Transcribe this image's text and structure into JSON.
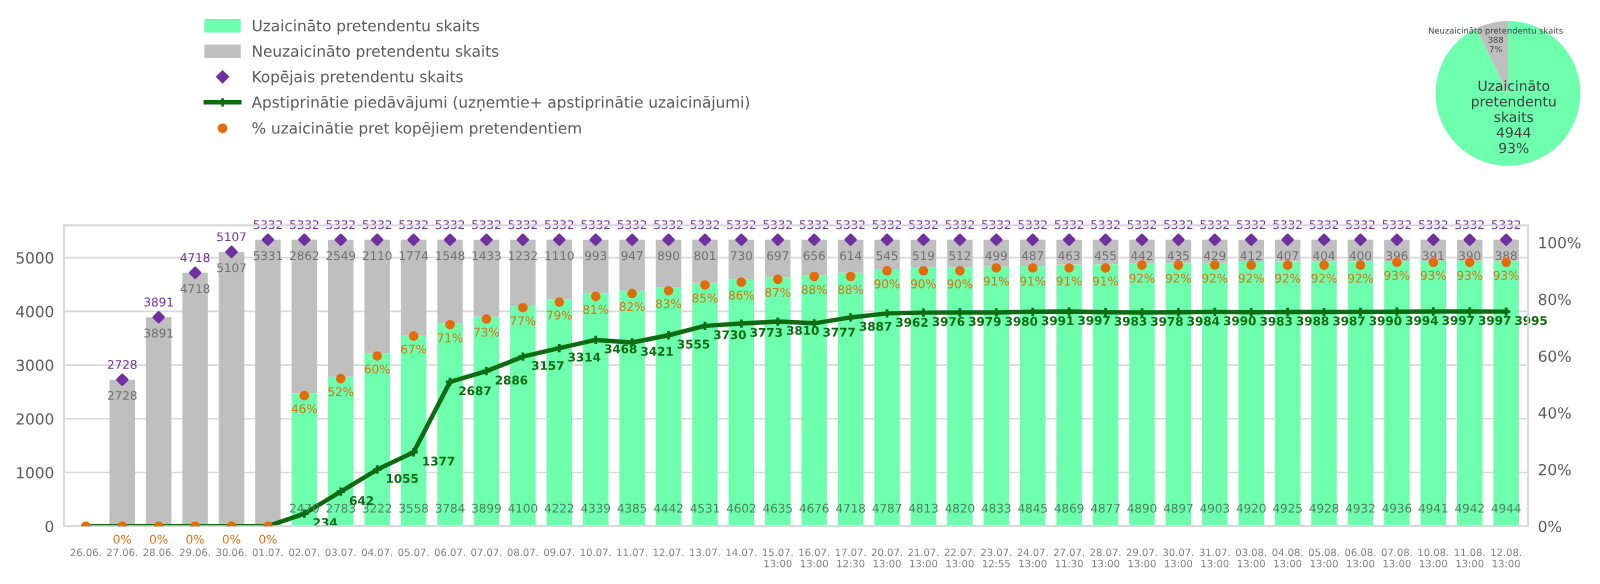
{
  "chart_data": [
    {
      "type": "bar",
      "stacked": true,
      "legend": "top",
      "grid": "y",
      "categories": [
        "26.06.",
        "27.06.",
        "28.06.",
        "29.06.",
        "30.06.",
        "01.07.",
        "02.07.",
        "03.07.",
        "04.07.",
        "05.07.",
        "06.07.",
        "07.07.",
        "08.07.",
        "09.07.",
        "10.07.",
        "11.07.",
        "12.07.",
        "13.07.",
        "14.07.",
        "15.07.\n13:00",
        "16.07.\n13:00",
        "17.07.\n12:30",
        "20.07.\n13:00",
        "21.07.\n13:00",
        "22.07.\n13:00",
        "23.07.\n12:55",
        "24.07.\n13:00",
        "27.07.\n11:30",
        "28.07.\n13:00",
        "29.07.\n13:00",
        "30.07.\n13:00",
        "31.07.\n13:00",
        "03.08.\n13:00",
        "04.08.\n13:00",
        "05.08.\n13:00",
        "06.08.\n13:00",
        "07.08.\n13:00",
        "10.08.\n13:00",
        "11.08.\n13:00",
        "12.08.\n13:00"
      ],
      "ylim": [
        0,
        5600
      ],
      "yticks": [
        0,
        1000,
        2000,
        3000,
        4000,
        5000
      ],
      "y2lim": [
        0,
        106
      ],
      "y2ticks": [
        {
          "value": 0,
          "label": "0%"
        },
        {
          "value": 20,
          "label": "20%"
        },
        {
          "value": 40,
          "label": "40%"
        },
        {
          "value": 60,
          "label": "60%"
        },
        {
          "value": 80,
          "label": "80%"
        },
        {
          "value": 100,
          "label": "100%"
        }
      ],
      "series": [
        {
          "type": "bar",
          "name": "Uzaicināto pretendentu skaits",
          "color": "#6dffad",
          "values": [
            0,
            0,
            0,
            0,
            0,
            0,
            2470,
            2783,
            3222,
            3558,
            3784,
            3899,
            4100,
            4222,
            4339,
            4385,
            4442,
            4531,
            4602,
            4635,
            4676,
            4718,
            4787,
            4813,
            4820,
            4833,
            4845,
            4869,
            4877,
            4890,
            4897,
            4903,
            4920,
            4925,
            4928,
            4932,
            4936,
            4941,
            4942,
            4944
          ],
          "value_labels": [
            null,
            null,
            null,
            null,
            null,
            null,
            "2470",
            "2783",
            "3222",
            "3558",
            "3784",
            "3899",
            "4100",
            "4222",
            "4339",
            "4385",
            "4442",
            "4531",
            "4602",
            "4635",
            "4676",
            "4718",
            "4787",
            "4813",
            "4820",
            "4833",
            "4845",
            "4869",
            "4877",
            "4890",
            "4897",
            "4903",
            "4920",
            "4925",
            "4928",
            "4932",
            "4936",
            "4941",
            "4942",
            "4944"
          ]
        },
        {
          "type": "bar",
          "name": "Neuzaicināto pretendentu skaits",
          "color": "#bfbfbf",
          "values": [
            0,
            2728,
            3891,
            4718,
            5107,
            5331,
            2862,
            2549,
            2110,
            1774,
            1548,
            1433,
            1232,
            1110,
            993,
            947,
            890,
            801,
            730,
            697,
            656,
            614,
            545,
            519,
            512,
            499,
            487,
            463,
            455,
            442,
            435,
            429,
            412,
            407,
            404,
            400,
            396,
            391,
            390,
            388
          ],
          "value_labels": [
            null,
            "2728",
            "3891",
            "4718",
            "5107",
            "5331",
            "2862",
            "2549",
            "2110",
            "1774",
            "1548",
            "1433",
            "1232",
            "1110",
            "993",
            "947",
            "890",
            "801",
            "730",
            "697",
            "656",
            "614",
            "545",
            "519",
            "512",
            "499",
            "487",
            "463",
            "455",
            "442",
            "435",
            "429",
            "412",
            "407",
            "404",
            "400",
            "396",
            "391",
            "390",
            "388"
          ]
        },
        {
          "type": "scatter",
          "name": "Kopējais pretendentu skaits",
          "color": "#7030a0",
          "marker": "diamond",
          "values": [
            null,
            2728,
            3891,
            4718,
            5107,
            5332,
            5332,
            5332,
            5332,
            5332,
            5332,
            5332,
            5332,
            5332,
            5332,
            5332,
            5332,
            5332,
            5332,
            5332,
            5332,
            5332,
            5332,
            5332,
            5332,
            5332,
            5332,
            5332,
            5332,
            5332,
            5332,
            5332,
            5332,
            5332,
            5332,
            5332,
            5332,
            5332,
            5332,
            5332
          ],
          "value_labels": [
            null,
            "2728",
            "3891",
            "4718",
            "5107",
            "5332",
            "5332",
            "5332",
            "5332",
            "5332",
            "5332",
            "5332",
            "5332",
            "5332",
            "5332",
            "5332",
            "5332",
            "5332",
            "5332",
            "5332",
            "5332",
            "5332",
            "5332",
            "5332",
            "5332",
            "5332",
            "5332",
            "5332",
            "5332",
            "5332",
            "5332",
            "5332",
            "5332",
            "5332",
            "5332",
            "5332",
            "5332",
            "5332",
            "5332",
            "5332"
          ]
        },
        {
          "type": "line",
          "name": "Apstiprinātie piedāvājumi (uzņemtie+ apstiprinātie uzaicinājumi)",
          "color": "#0f6b12",
          "marker": "cross",
          "line_style": "solid",
          "values": [
            0,
            0,
            0,
            0,
            0,
            0,
            234,
            642,
            1055,
            1377,
            2687,
            2886,
            3157,
            3314,
            3468,
            3421,
            3555,
            3730,
            3773,
            3810,
            3777,
            3887,
            3962,
            3976,
            3979,
            3980,
            3991,
            3997,
            3983,
            3978,
            3984,
            3990,
            3983,
            3988,
            3987,
            3990,
            3994,
            3997,
            3997,
            3995
          ],
          "value_labels": [
            null,
            null,
            null,
            null,
            null,
            null,
            "234",
            "642",
            "1055",
            "1377",
            "2687",
            "2886",
            "3157",
            "3314",
            "3468",
            "3421",
            "3555",
            "3730",
            "3773",
            "3810",
            "3777",
            "3887",
            "3962",
            "3976",
            "3979",
            "3980",
            "3991",
            "3997",
            "3983",
            "3978",
            "3984",
            "3990",
            "3983",
            "3988",
            "3987",
            "3990",
            "3994",
            "3997",
            "3997",
            "3995"
          ]
        },
        {
          "type": "scatter",
          "axis": "y2",
          "name": "% uzaicinātie pret kopējiem pretendentiem",
          "color": "#e36c09",
          "marker": "circle",
          "values": [
            0,
            0,
            0,
            0,
            0,
            0,
            46,
            52,
            60,
            67,
            71,
            73,
            77,
            79,
            81,
            82,
            83,
            85,
            86,
            87,
            88,
            88,
            90,
            90,
            90,
            91,
            91,
            91,
            91,
            92,
            92,
            92,
            92,
            92,
            92,
            92,
            93,
            93,
            93,
            93
          ],
          "value_labels": [
            null,
            "0%",
            "0%",
            "0%",
            "0%",
            "0%",
            "46%",
            "52%",
            "60%",
            "67%",
            "71%",
            "73%",
            "77%",
            "79%",
            "81%",
            "82%",
            "83%",
            "85%",
            "86%",
            "87%",
            "88%",
            "88%",
            "90%",
            "90%",
            "90%",
            "91%",
            "91%",
            "91%",
            "91%",
            "92%",
            "92%",
            "92%",
            "92%",
            "92%",
            "92%",
            "92%",
            "93%",
            "93%",
            "93%",
            "93%"
          ]
        }
      ]
    },
    {
      "type": "pie",
      "categories": [
        "Uzaicināto pretendentu skaits",
        "Neuzaicināto pretendentu skaits"
      ],
      "values": [
        4944,
        388
      ],
      "colors": [
        "#6dffad",
        "#bfbfbf"
      ],
      "value_labels": [
        "4944\n93%",
        "388\n7%"
      ]
    }
  ]
}
